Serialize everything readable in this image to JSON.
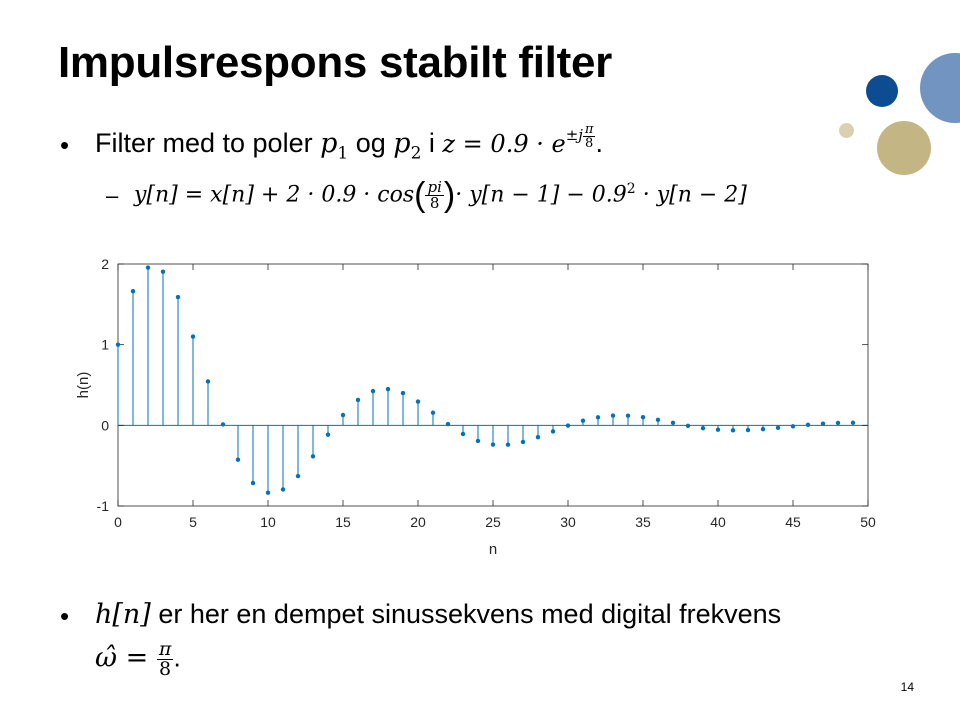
{
  "slide": {
    "title": "Impulsrespons stabilt filter",
    "page_number": "14"
  },
  "bullets": [
    {
      "marker": "•",
      "text_a": "Filter med to poler ",
      "p1": "p",
      "p1_sub": "1",
      "text_b": " og ",
      "p2": "p",
      "p2_sub": "2",
      "text_c": " i ",
      "expr": "z = 0.9 · e",
      "exp_prefix": "±j",
      "exp_num": "π",
      "exp_den": "8",
      "end": "."
    },
    {
      "marker": "–",
      "eq_left": "y[n] = x[n] + 2 · 0.9 · cos",
      "frac_num": "pi",
      "frac_den": "8",
      "eq_mid": "· y[n − 1] − 0.9",
      "eq_sup": "2",
      "eq_right": " · y[n − 2]"
    },
    {
      "marker": "•",
      "math_h": "h[n]",
      "text": " er her en dempet sinussekvens med digital frekvens",
      "omega": "ω̂ = ",
      "frac_num": "π",
      "frac_den": "8",
      "end": "."
    }
  ],
  "colors": {
    "stem": "#0072BD",
    "circle_dark_blue": "#0E4C92",
    "circle_light_blue": "#7294C0",
    "circle_tan": "#C4B585",
    "circle_light_tan": "#D9D0B1"
  },
  "chart_data": {
    "type": "stem",
    "xlabel": "n",
    "ylabel": "h(n)",
    "xlim": [
      0,
      50
    ],
    "ylim": [
      -1,
      2
    ],
    "xticks": [
      "0",
      "5",
      "10",
      "15",
      "20",
      "25",
      "30",
      "35",
      "40",
      "45",
      "50"
    ],
    "yticks": [
      "-1",
      "0",
      "1",
      "2"
    ],
    "x": [
      0,
      1,
      2,
      3,
      4,
      5,
      6,
      7,
      8,
      9,
      10,
      11,
      12,
      13,
      14,
      15,
      16,
      17,
      18,
      19,
      20,
      21,
      22,
      23,
      24,
      25,
      26,
      27,
      28,
      29,
      30,
      31,
      32,
      33,
      34,
      35,
      36,
      37,
      38,
      39,
      40,
      41,
      42,
      43,
      44,
      45,
      46,
      47,
      48,
      49
    ],
    "y": [
      1.0,
      1.663,
      1.955,
      1.905,
      1.59,
      1.101,
      0.544,
      0.011,
      -0.426,
      -0.715,
      -0.835,
      -0.795,
      -0.629,
      -0.384,
      -0.116,
      0.128,
      0.315,
      0.424,
      0.449,
      0.4,
      0.294,
      0.156,
      0.015,
      -0.107,
      -0.194,
      -0.238,
      -0.24,
      -0.206,
      -0.147,
      -0.075,
      -0.003,
      0.058,
      0.1,
      0.121,
      0.12,
      0.101,
      0.069,
      0.031,
      -0.006,
      -0.035,
      -0.054,
      -0.062,
      -0.059,
      -0.048,
      -0.031,
      -0.012,
      0.006,
      0.021,
      0.03,
      0.032
    ]
  }
}
